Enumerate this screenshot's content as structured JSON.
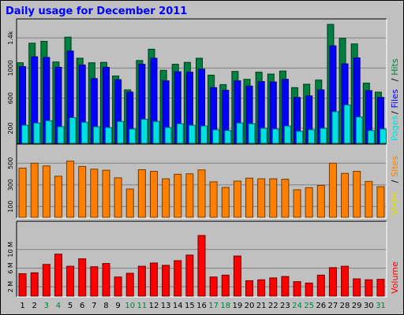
{
  "chart_data": {
    "type": "bar",
    "title": "Daily usage for December 2011",
    "days": [
      "1",
      "2",
      "3",
      "4",
      "5",
      "6",
      "7",
      "8",
      "9",
      "10",
      "11",
      "12",
      "13",
      "14",
      "15",
      "16",
      "17",
      "18",
      "19",
      "20",
      "21",
      "22",
      "23",
      "24",
      "25",
      "26",
      "27",
      "28",
      "29",
      "30",
      "31"
    ],
    "weekend_days": [
      "3",
      "4",
      "10",
      "11",
      "17",
      "18",
      "24",
      "25",
      "31"
    ],
    "panels": [
      {
        "name": "top",
        "legend": [
          {
            "text": "Pages",
            "color": "#00e0e0"
          },
          {
            "text": "/",
            "color": "#000000"
          },
          {
            "text": "Files",
            "color": "#0000ff"
          },
          {
            "text": "/",
            "color": "#000000"
          },
          {
            "text": "Hits",
            "color": "#008040"
          }
        ],
        "ylim": [
          0,
          1600
        ],
        "ticks": [
          {
            "v": 200,
            "label": "200"
          },
          {
            "v": 600,
            "label": "600"
          },
          {
            "v": 1000,
            "label": "1000"
          },
          {
            "v": 1400,
            "label": "1.4k"
          }
        ],
        "series": [
          {
            "name": "Hits",
            "color": "#008040",
            "values": [
              1070,
              1330,
              1355,
              1080,
              1410,
              1130,
              1070,
              1075,
              895,
              710,
              1100,
              1250,
              970,
              1050,
              1075,
              1130,
              905,
              780,
              955,
              850,
              945,
              920,
              960,
              740,
              785,
              840,
              1580,
              1395,
              1320,
              800,
              680
            ]
          },
          {
            "name": "Files",
            "color": "#0000ff",
            "values": [
              1020,
              1150,
              1140,
              1010,
              1225,
              1040,
              860,
              1010,
              845,
              680,
              1050,
              1130,
              830,
              950,
              945,
              985,
              740,
              705,
              830,
              760,
              820,
              815,
              850,
              610,
              630,
              710,
              1295,
              1055,
              1135,
              700,
              610
            ]
          },
          {
            "name": "Pages",
            "color": "#00e0e0",
            "values": [
              240,
              270,
              300,
              220,
              340,
              280,
              220,
              210,
              290,
              190,
              320,
              290,
              210,
              260,
              240,
              230,
              180,
              170,
              270,
              260,
              200,
              190,
              230,
              160,
              180,
              200,
              420,
              510,
              350,
              170,
              190
            ]
          }
        ]
      },
      {
        "name": "middle",
        "legend": [
          {
            "text": "Visits",
            "color": "#e0e000"
          },
          {
            "text": "/",
            "color": "#000000"
          },
          {
            "text": "Sites",
            "color": "#ff8000"
          }
        ],
        "ylim": [
          0,
          640
        ],
        "ticks": [
          {
            "v": 100,
            "label": "100"
          },
          {
            "v": 300,
            "label": "300"
          },
          {
            "v": 500,
            "label": "500"
          }
        ],
        "series": [
          {
            "name": "Sites",
            "color": "#ff8000",
            "values": [
              455,
              500,
              475,
              380,
              520,
              470,
              445,
              435,
              365,
              262,
              440,
              425,
              356,
              398,
              402,
              438,
              328,
              276,
              335,
              362,
              356,
              356,
              352,
              255,
              274,
              295,
              500,
              406,
              425,
              332,
              283
            ]
          }
        ]
      },
      {
        "name": "bottom",
        "legend": [
          {
            "text": "Volume",
            "color": "#ff0000"
          }
        ],
        "ylim": [
          0,
          15.2
        ],
        "ticks": [
          {
            "v": 2,
            "label": "2 M"
          },
          {
            "v": 6,
            "label": "6 M"
          },
          {
            "v": 10,
            "label": "10 M"
          }
        ],
        "series": [
          {
            "name": "Volume",
            "color": "#ff0000",
            "values": [
              4.8,
              5.0,
              6.8,
              9.0,
              6.4,
              8.0,
              6.3,
              7.0,
              4.1,
              4.9,
              6.4,
              7.1,
              6.6,
              7.6,
              8.8,
              13.0,
              4.1,
              4.5,
              8.6,
              3.3,
              3.5,
              3.9,
              4.2,
              3.1,
              2.8,
              4.5,
              6.1,
              6.4,
              3.7,
              3.5,
              3.6
            ]
          }
        ]
      }
    ]
  }
}
